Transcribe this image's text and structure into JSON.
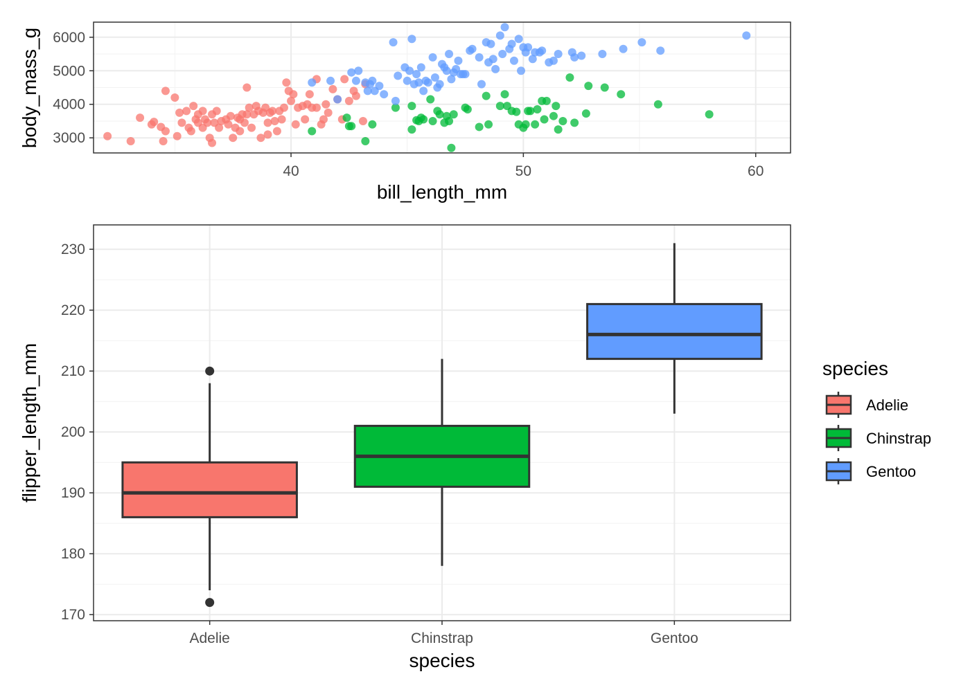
{
  "chart_data": [
    {
      "type": "scatter",
      "title": "",
      "xlabel": "bill_length_mm",
      "ylabel": "body_mass_g",
      "xlim": [
        31.5,
        61.5
      ],
      "ylim": [
        2550,
        6450
      ],
      "xticks": [
        40,
        50,
        60
      ],
      "xtick_labels": [
        "40",
        "50",
        "60"
      ],
      "yticks": [
        3000,
        4000,
        5000,
        6000
      ],
      "ytick_labels": [
        "3000",
        "4000",
        "5000",
        "6000"
      ],
      "grid": true,
      "series": [
        {
          "name": "Adelie",
          "color": "#F8766D",
          "points": [
            [
              32.1,
              3050
            ],
            [
              33.1,
              2900
            ],
            [
              33.5,
              3600
            ],
            [
              34.0,
              3400
            ],
            [
              34.1,
              3475
            ],
            [
              34.4,
              3325
            ],
            [
              34.5,
              2900
            ],
            [
              34.6,
              3200
            ],
            [
              34.6,
              4400
            ],
            [
              35.0,
              4200
            ],
            [
              35.1,
              3050
            ],
            [
              35.2,
              3750
            ],
            [
              35.3,
              3450
            ],
            [
              35.5,
              3800
            ],
            [
              35.6,
              3300
            ],
            [
              35.7,
              3200
            ],
            [
              35.9,
              3550
            ],
            [
              36.0,
              3450
            ],
            [
              36.0,
              3700
            ],
            [
              36.2,
              3300
            ],
            [
              36.2,
              3800
            ],
            [
              36.3,
              3550
            ],
            [
              36.4,
              3450
            ],
            [
              36.5,
              3000
            ],
            [
              36.6,
              2850
            ],
            [
              36.6,
              3700
            ],
            [
              36.7,
              3450
            ],
            [
              36.8,
              3800
            ],
            [
              37.0,
              3500
            ],
            [
              37.2,
              3550
            ],
            [
              37.3,
              3400
            ],
            [
              37.5,
              3000
            ],
            [
              37.6,
              3300
            ],
            [
              37.7,
              3600
            ],
            [
              37.8,
              3200
            ],
            [
              37.8,
              3550
            ],
            [
              37.9,
              3700
            ],
            [
              38.0,
              3450
            ],
            [
              38.1,
              3700
            ],
            [
              38.1,
              4500
            ],
            [
              38.2,
              3900
            ],
            [
              38.3,
              3300
            ],
            [
              38.5,
              3950
            ],
            [
              38.6,
              3800
            ],
            [
              38.7,
              3000
            ],
            [
              38.8,
              3750
            ],
            [
              39.0,
              3100
            ],
            [
              39.0,
              3450
            ],
            [
              39.1,
              3750
            ],
            [
              39.2,
              3800
            ],
            [
              39.3,
              3500
            ],
            [
              39.5,
              3800
            ],
            [
              39.6,
              3550
            ],
            [
              39.7,
              3900
            ],
            [
              39.8,
              4650
            ],
            [
              40.1,
              4300
            ],
            [
              40.2,
              3400
            ],
            [
              40.3,
              3900
            ],
            [
              40.5,
              3950
            ],
            [
              40.6,
              3550
            ],
            [
              40.8,
              4300
            ],
            [
              40.9,
              3900
            ],
            [
              41.1,
              3900
            ],
            [
              41.1,
              4750
            ],
            [
              41.3,
              3400
            ],
            [
              41.4,
              3550
            ],
            [
              41.5,
              4000
            ],
            [
              41.6,
              3750
            ],
            [
              42.0,
              4150
            ],
            [
              42.2,
              3550
            ],
            [
              42.3,
              4750
            ],
            [
              42.5,
              4100
            ],
            [
              42.7,
              4400
            ],
            [
              42.8,
              4250
            ],
            [
              43.1,
              3500
            ],
            [
              43.2,
              4600
            ],
            [
              39.9,
              4400
            ],
            [
              41.8,
              4450
            ],
            [
              38.9,
              3900
            ],
            [
              37.4,
              3650
            ],
            [
              36.9,
              3300
            ],
            [
              35.8,
              3950
            ],
            [
              40.0,
              4100
            ],
            [
              40.7,
              4000
            ],
            [
              39.4,
              3200
            ],
            [
              38.4,
              3700
            ]
          ]
        },
        {
          "name": "Chinstrap",
          "color": "#00BA38",
          "points": [
            [
              40.9,
              3200
            ],
            [
              42.4,
              3600
            ],
            [
              42.5,
              3350
            ],
            [
              43.2,
              2900
            ],
            [
              43.5,
              3400
            ],
            [
              45.2,
              3250
            ],
            [
              45.2,
              3950
            ],
            [
              45.4,
              3525
            ],
            [
              45.5,
              3500
            ],
            [
              45.6,
              3600
            ],
            [
              45.7,
              3550
            ],
            [
              46.0,
              4150
            ],
            [
              46.1,
              3500
            ],
            [
              46.4,
              3700
            ],
            [
              46.6,
              3450
            ],
            [
              46.7,
              3650
            ],
            [
              46.8,
              3500
            ],
            [
              46.9,
              2700
            ],
            [
              47.0,
              3700
            ],
            [
              47.5,
              3900
            ],
            [
              47.6,
              3850
            ],
            [
              48.1,
              3325
            ],
            [
              48.5,
              3400
            ],
            [
              49.0,
              3950
            ],
            [
              49.2,
              4300
            ],
            [
              49.5,
              3800
            ],
            [
              49.7,
              3775
            ],
            [
              49.8,
              3400
            ],
            [
              50.0,
              3300
            ],
            [
              50.1,
              3400
            ],
            [
              50.2,
              3800
            ],
            [
              50.3,
              3800
            ],
            [
              50.5,
              3400
            ],
            [
              50.6,
              3850
            ],
            [
              50.8,
              4100
            ],
            [
              51.0,
              4100
            ],
            [
              51.3,
              3650
            ],
            [
              51.4,
              3950
            ],
            [
              51.5,
              3250
            ],
            [
              51.7,
              3500
            ],
            [
              52.0,
              4800
            ],
            [
              52.2,
              3450
            ],
            [
              52.7,
              3725
            ],
            [
              52.8,
              4550
            ],
            [
              53.5,
              4500
            ],
            [
              54.2,
              4300
            ],
            [
              55.8,
              4000
            ],
            [
              58.0,
              3700
            ],
            [
              49.3,
              3950
            ],
            [
              50.9,
              3550
            ],
            [
              48.4,
              4250
            ],
            [
              46.3,
              3800
            ],
            [
              44.5,
              3900
            ],
            [
              42.6,
              3350
            ]
          ]
        },
        {
          "name": "Gentoo",
          "color": "#619CFF",
          "points": [
            [
              40.9,
              4650
            ],
            [
              41.7,
              4700
            ],
            [
              42.0,
              4150
            ],
            [
              42.6,
              4950
            ],
            [
              42.8,
              4700
            ],
            [
              42.9,
              5000
            ],
            [
              43.2,
              4650
            ],
            [
              43.3,
              4400
            ],
            [
              43.4,
              4600
            ],
            [
              43.5,
              4700
            ],
            [
              43.6,
              4400
            ],
            [
              44.0,
              4300
            ],
            [
              44.4,
              5850
            ],
            [
              44.5,
              4100
            ],
            [
              44.9,
              5100
            ],
            [
              45.0,
              4700
            ],
            [
              45.1,
              5000
            ],
            [
              45.2,
              5950
            ],
            [
              45.3,
              4600
            ],
            [
              45.4,
              4900
            ],
            [
              45.5,
              4650
            ],
            [
              45.7,
              4400
            ],
            [
              45.8,
              4700
            ],
            [
              46.1,
              5400
            ],
            [
              46.2,
              4800
            ],
            [
              46.4,
              4600
            ],
            [
              46.5,
              5200
            ],
            [
              46.6,
              5100
            ],
            [
              46.8,
              5500
            ],
            [
              47.2,
              5300
            ],
            [
              47.3,
              4900
            ],
            [
              47.5,
              4900
            ],
            [
              47.7,
              5600
            ],
            [
              47.8,
              5650
            ],
            [
              48.1,
              5400
            ],
            [
              48.2,
              4600
            ],
            [
              48.4,
              5850
            ],
            [
              48.6,
              5800
            ],
            [
              48.7,
              5350
            ],
            [
              49.0,
              6050
            ],
            [
              49.1,
              5500
            ],
            [
              49.2,
              6300
            ],
            [
              49.4,
              5650
            ],
            [
              49.5,
              5800
            ],
            [
              49.6,
              5300
            ],
            [
              49.8,
              5950
            ],
            [
              50.0,
              5700
            ],
            [
              50.1,
              5550
            ],
            [
              50.2,
              5700
            ],
            [
              50.4,
              5350
            ],
            [
              50.5,
              5550
            ],
            [
              50.8,
              5600
            ],
            [
              51.1,
              5250
            ],
            [
              51.5,
              5500
            ],
            [
              52.1,
              5550
            ],
            [
              52.2,
              5400
            ],
            [
              52.5,
              5450
            ],
            [
              53.4,
              5500
            ],
            [
              54.3,
              5650
            ],
            [
              55.1,
              5850
            ],
            [
              55.9,
              5600
            ],
            [
              59.6,
              6050
            ],
            [
              46.9,
              4750
            ],
            [
              47.4,
              4900
            ],
            [
              45.9,
              4650
            ],
            [
              44.6,
              4850
            ],
            [
              46.7,
              5000
            ],
            [
              48.5,
              5250
            ],
            [
              49.9,
              5000
            ],
            [
              50.7,
              5550
            ],
            [
              51.3,
              5300
            ],
            [
              43.8,
              4550
            ],
            [
              45.6,
              5100
            ],
            [
              47.1,
              5050
            ],
            [
              47.0,
              4950
            ],
            [
              46.3,
              4500
            ],
            [
              48.8,
              5050
            ]
          ]
        }
      ]
    },
    {
      "type": "box",
      "title": "",
      "xlabel": "species",
      "ylabel": "flipper_length_mm",
      "ylim": [
        169,
        234
      ],
      "yticks": [
        170,
        180,
        190,
        200,
        210,
        220,
        230
      ],
      "ytick_labels": [
        "170",
        "180",
        "190",
        "200",
        "210",
        "220",
        "230"
      ],
      "grid": true,
      "categories": [
        "Adelie",
        "Chinstrap",
        "Gentoo"
      ],
      "boxes": [
        {
          "name": "Adelie",
          "color": "#F8766D",
          "q1": 186,
          "median": 190,
          "q3": 195,
          "whisker_low": 174,
          "whisker_high": 208,
          "outliers": [
            210,
            172
          ]
        },
        {
          "name": "Chinstrap",
          "color": "#00BA38",
          "q1": 191,
          "median": 196,
          "q3": 201,
          "whisker_low": 178,
          "whisker_high": 212,
          "outliers": []
        },
        {
          "name": "Gentoo",
          "color": "#619CFF",
          "q1": 212,
          "median": 216,
          "q3": 221,
          "whisker_low": 203,
          "whisker_high": 231,
          "outliers": []
        }
      ]
    }
  ],
  "legend": {
    "title": "species",
    "placement": "right",
    "items": [
      {
        "label": "Adelie",
        "color": "#F8766D"
      },
      {
        "label": "Chinstrap",
        "color": "#00BA38"
      },
      {
        "label": "Gentoo",
        "color": "#619CFF"
      }
    ]
  }
}
